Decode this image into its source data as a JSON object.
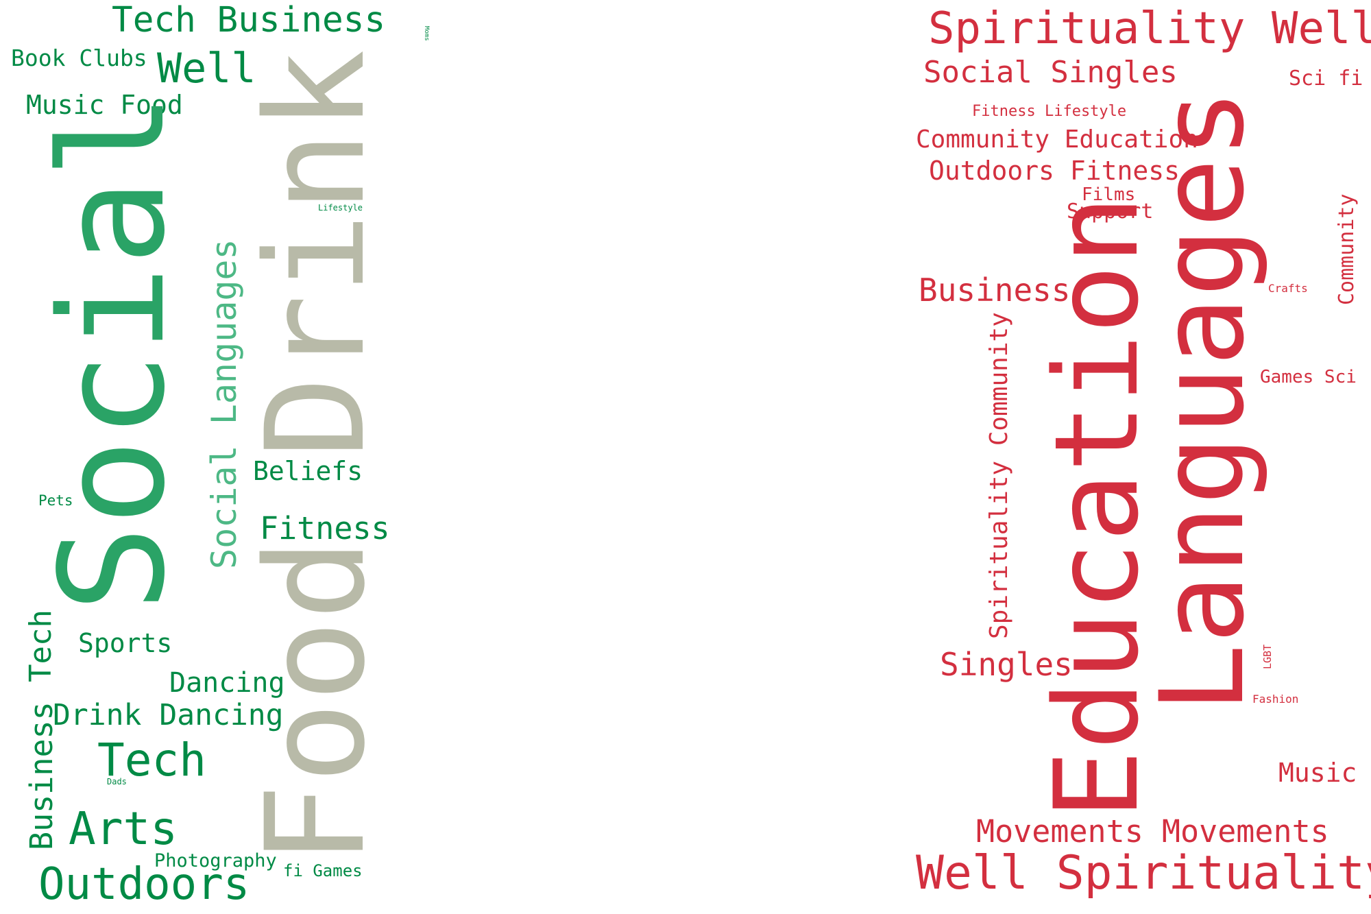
{
  "colors": {
    "green": "#008a45",
    "green_mid": "#2aa366",
    "green_light": "#4db885",
    "gray": "#b8baa8",
    "red": "#d32f3f"
  },
  "left_cloud": {
    "words": [
      {
        "text": "Tech Business",
        "color": "green",
        "orientation": "horizontal"
      },
      {
        "text": "Moms",
        "color": "green",
        "orientation": "vertical-down"
      },
      {
        "text": "Book Clubs",
        "color": "green",
        "orientation": "horizontal"
      },
      {
        "text": "Well",
        "color": "green",
        "orientation": "horizontal"
      },
      {
        "text": "Music Food",
        "color": "green",
        "orientation": "horizontal"
      },
      {
        "text": "Social",
        "color": "green_mid",
        "orientation": "vertical"
      },
      {
        "text": "Drink",
        "color": "gray",
        "orientation": "vertical"
      },
      {
        "text": "Food",
        "color": "gray",
        "orientation": "vertical"
      },
      {
        "text": "Lifestyle",
        "color": "green",
        "orientation": "horizontal"
      },
      {
        "text": "Social Languages",
        "color": "green_light",
        "orientation": "vertical"
      },
      {
        "text": "Beliefs",
        "color": "green",
        "orientation": "horizontal"
      },
      {
        "text": "Pets",
        "color": "green",
        "orientation": "horizontal"
      },
      {
        "text": "Fitness",
        "color": "green",
        "orientation": "horizontal"
      },
      {
        "text": "Tech",
        "color": "green",
        "orientation": "vertical"
      },
      {
        "text": "Sports",
        "color": "green",
        "orientation": "horizontal"
      },
      {
        "text": "Dancing",
        "color": "green",
        "orientation": "horizontal"
      },
      {
        "text": "Drink Dancing",
        "color": "green",
        "orientation": "horizontal"
      },
      {
        "text": "Business",
        "color": "green",
        "orientation": "vertical"
      },
      {
        "text": "Tech",
        "color": "green",
        "orientation": "horizontal"
      },
      {
        "text": "Dads",
        "color": "green",
        "orientation": "horizontal"
      },
      {
        "text": "Arts",
        "color": "green",
        "orientation": "horizontal"
      },
      {
        "text": "Photography",
        "color": "green",
        "orientation": "horizontal"
      },
      {
        "text": "Outdoors",
        "color": "green",
        "orientation": "horizontal"
      },
      {
        "text": "fi Games",
        "color": "green",
        "orientation": "horizontal"
      }
    ]
  },
  "right_cloud": {
    "words": [
      {
        "text": "Spirituality Well",
        "color": "red",
        "orientation": "horizontal"
      },
      {
        "text": "Social Singles",
        "color": "red",
        "orientation": "horizontal"
      },
      {
        "text": "Sci fi",
        "color": "red",
        "orientation": "horizontal"
      },
      {
        "text": "Fitness Lifestyle",
        "color": "red",
        "orientation": "horizontal"
      },
      {
        "text": "Community Education",
        "color": "red",
        "orientation": "horizontal"
      },
      {
        "text": "Outdoors Fitness",
        "color": "red",
        "orientation": "horizontal"
      },
      {
        "text": "Films",
        "color": "red",
        "orientation": "horizontal"
      },
      {
        "text": "Support",
        "color": "red",
        "orientation": "horizontal"
      },
      {
        "text": "Languages",
        "color": "red",
        "orientation": "vertical"
      },
      {
        "text": "Community",
        "color": "red",
        "orientation": "vertical"
      },
      {
        "text": "Business",
        "color": "red",
        "orientation": "horizontal"
      },
      {
        "text": "Crafts",
        "color": "red",
        "orientation": "horizontal"
      },
      {
        "text": "Education",
        "color": "red",
        "orientation": "vertical"
      },
      {
        "text": "Spirituality Community",
        "color": "red",
        "orientation": "vertical"
      },
      {
        "text": "Games Sci",
        "color": "red",
        "orientation": "horizontal"
      },
      {
        "text": "Singles",
        "color": "red",
        "orientation": "horizontal"
      },
      {
        "text": "LGBT",
        "color": "red",
        "orientation": "vertical"
      },
      {
        "text": "Fashion",
        "color": "red",
        "orientation": "horizontal"
      },
      {
        "text": "Music",
        "color": "red",
        "orientation": "horizontal"
      },
      {
        "text": "Movements Movements",
        "color": "red",
        "orientation": "horizontal"
      },
      {
        "text": "Well Spirituality",
        "color": "red",
        "orientation": "horizontal"
      }
    ]
  }
}
